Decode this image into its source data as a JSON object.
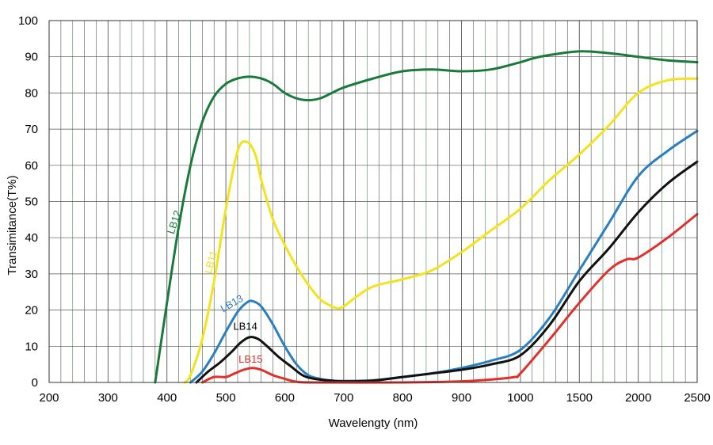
{
  "chart_data": {
    "type": "line",
    "title": "",
    "xlabel": "Wavelengty (nm)",
    "ylabel": "Transimitance(T%)",
    "ylim": [
      0,
      100
    ],
    "grid": true,
    "x_tick_labels": [
      "200",
      "300",
      "400",
      "500",
      "600",
      "700",
      "800",
      "900",
      "1000",
      "1500",
      "2000",
      "2500"
    ],
    "y_tick_labels": [
      "0",
      "10",
      "20",
      "30",
      "40",
      "50",
      "60",
      "70",
      "80",
      "90",
      "100"
    ],
    "series": [
      {
        "name": "LB12",
        "color": "#1a7a3a",
        "points": [
          [
            380,
            0
          ],
          [
            400,
            22
          ],
          [
            420,
            43
          ],
          [
            440,
            60
          ],
          [
            460,
            72
          ],
          [
            480,
            79
          ],
          [
            500,
            82.5
          ],
          [
            520,
            84
          ],
          [
            540,
            84.5
          ],
          [
            560,
            84
          ],
          [
            580,
            82.5
          ],
          [
            600,
            80
          ],
          [
            620,
            78.5
          ],
          [
            640,
            78
          ],
          [
            660,
            78.5
          ],
          [
            680,
            80
          ],
          [
            700,
            81.5
          ],
          [
            750,
            84
          ],
          [
            800,
            86
          ],
          [
            850,
            86.5
          ],
          [
            900,
            86
          ],
          [
            950,
            86.5
          ],
          [
            1000,
            88.5
          ],
          [
            1100,
            89.5
          ],
          [
            1250,
            90.5
          ],
          [
            1500,
            91.5
          ],
          [
            1750,
            91
          ],
          [
            2000,
            90
          ],
          [
            2250,
            89
          ],
          [
            2500,
            88.5
          ]
        ]
      },
      {
        "name": "LB11",
        "color": "#f4e21a",
        "points": [
          [
            430,
            0
          ],
          [
            440,
            2
          ],
          [
            460,
            12
          ],
          [
            480,
            28
          ],
          [
            500,
            48
          ],
          [
            520,
            64
          ],
          [
            535,
            66.5
          ],
          [
            550,
            63
          ],
          [
            560,
            56
          ],
          [
            580,
            45
          ],
          [
            600,
            38
          ],
          [
            620,
            32
          ],
          [
            640,
            27
          ],
          [
            660,
            23
          ],
          [
            680,
            21
          ],
          [
            690,
            20.5
          ],
          [
            700,
            21
          ],
          [
            720,
            23.5
          ],
          [
            750,
            26.5
          ],
          [
            800,
            28.5
          ],
          [
            850,
            31
          ],
          [
            900,
            36
          ],
          [
            950,
            42
          ],
          [
            1000,
            48
          ],
          [
            1250,
            56
          ],
          [
            1500,
            63
          ],
          [
            1750,
            71
          ],
          [
            2000,
            80
          ],
          [
            2250,
            83.5
          ],
          [
            2500,
            84
          ]
        ]
      },
      {
        "name": "LB13",
        "color": "#2a7fc0",
        "points": [
          [
            440,
            0
          ],
          [
            460,
            3
          ],
          [
            480,
            8
          ],
          [
            500,
            14
          ],
          [
            520,
            19.5
          ],
          [
            535,
            22
          ],
          [
            545,
            22.5
          ],
          [
            560,
            21
          ],
          [
            580,
            16
          ],
          [
            600,
            10
          ],
          [
            620,
            5
          ],
          [
            640,
            2
          ],
          [
            660,
            1
          ],
          [
            680,
            0.5
          ],
          [
            700,
            0.4
          ],
          [
            750,
            0.6
          ],
          [
            800,
            1.5
          ],
          [
            850,
            2.5
          ],
          [
            900,
            4
          ],
          [
            950,
            6
          ],
          [
            1000,
            9
          ],
          [
            1250,
            18
          ],
          [
            1500,
            31
          ],
          [
            1750,
            44
          ],
          [
            2000,
            57
          ],
          [
            2250,
            64
          ],
          [
            2500,
            69.5
          ]
        ]
      },
      {
        "name": "LB14",
        "color": "#111111",
        "points": [
          [
            450,
            0
          ],
          [
            470,
            3
          ],
          [
            490,
            5.5
          ],
          [
            510,
            8.5
          ],
          [
            525,
            11
          ],
          [
            540,
            12.5
          ],
          [
            555,
            12
          ],
          [
            570,
            10
          ],
          [
            590,
            7
          ],
          [
            610,
            4.5
          ],
          [
            630,
            2
          ],
          [
            650,
            1
          ],
          [
            680,
            0.5
          ],
          [
            700,
            0.3
          ],
          [
            750,
            0.5
          ],
          [
            800,
            1.5
          ],
          [
            850,
            2.5
          ],
          [
            900,
            3.5
          ],
          [
            950,
            5
          ],
          [
            1000,
            7.5
          ],
          [
            1250,
            16
          ],
          [
            1500,
            28
          ],
          [
            1750,
            37
          ],
          [
            2000,
            47
          ],
          [
            2250,
            55
          ],
          [
            2500,
            61
          ]
        ]
      },
      {
        "name": "LB15",
        "color": "#e0302a",
        "points": [
          [
            460,
            0
          ],
          [
            480,
            1.5
          ],
          [
            500,
            1.5
          ],
          [
            515,
            2.5
          ],
          [
            530,
            3.5
          ],
          [
            545,
            4
          ],
          [
            560,
            3.5
          ],
          [
            580,
            2
          ],
          [
            600,
            1
          ],
          [
            620,
            0.2
          ],
          [
            650,
            0
          ],
          [
            800,
            0
          ],
          [
            900,
            0.3
          ],
          [
            950,
            0.8
          ],
          [
            990,
            1.5
          ],
          [
            1000,
            2.5
          ],
          [
            1250,
            12
          ],
          [
            1500,
            22
          ],
          [
            1750,
            31
          ],
          [
            1900,
            34
          ],
          [
            2000,
            34.5
          ],
          [
            2250,
            40
          ],
          [
            2500,
            46.5
          ]
        ]
      }
    ],
    "annotations": [
      {
        "text": "LB12",
        "series": "LB12",
        "x": 418,
        "y": 44,
        "rotate": -72
      },
      {
        "text": "LB11",
        "series": "LB11",
        "x": 480,
        "y": 33,
        "rotate": -75
      },
      {
        "text": "LB13",
        "series": "LB13",
        "x": 513,
        "y": 21,
        "rotate": -30
      },
      {
        "text": "LB14",
        "series": "LB14",
        "x": 533,
        "y": 14.5,
        "rotate": 0
      },
      {
        "text": "LB15",
        "series": "LB15",
        "x": 542,
        "y": 5.5,
        "rotate": 0
      }
    ]
  }
}
